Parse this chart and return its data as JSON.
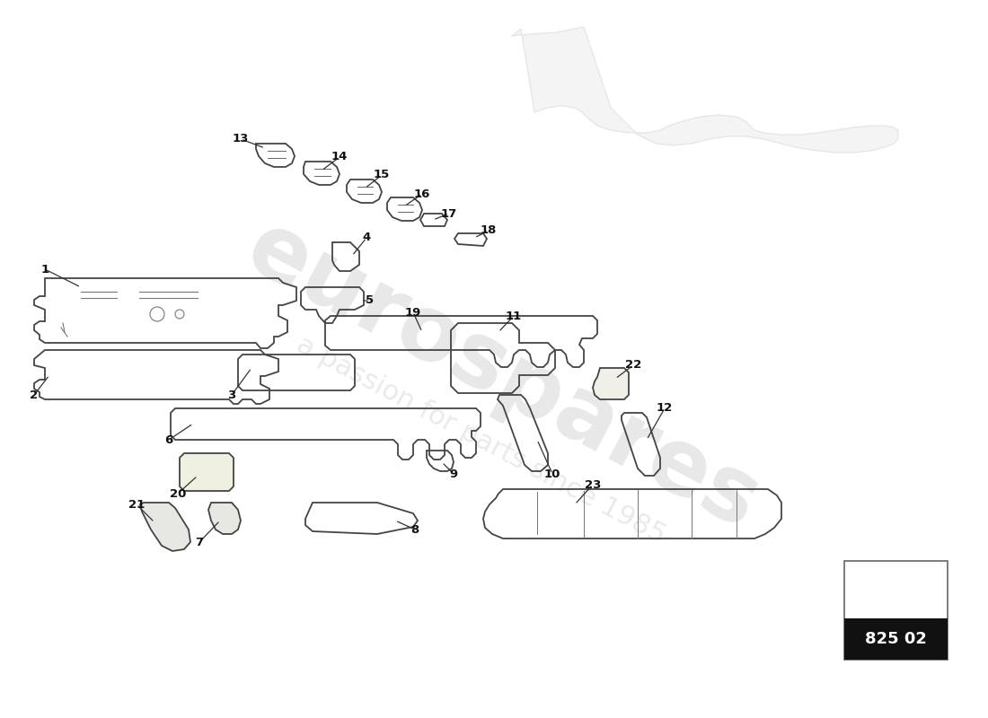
{
  "bg_color": "#ffffff",
  "part_number_box": "825 02",
  "watermark_text": "eurospares",
  "watermark_subtext": "a passion for parts since 1985",
  "line_color": "#444444",
  "label_color": "#111111",
  "wm_color": "#cccccc",
  "wm_alpha": 0.45
}
